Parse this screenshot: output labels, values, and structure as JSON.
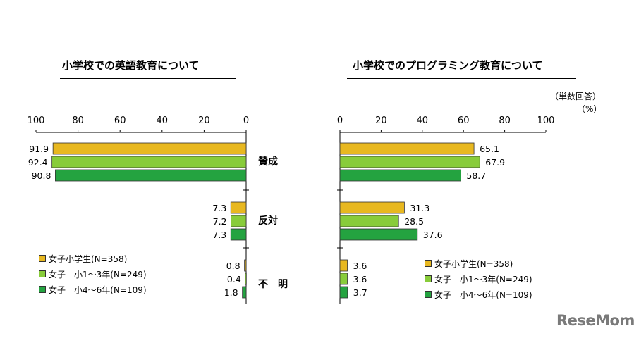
{
  "chart_data": [
    {
      "type": "bar",
      "orientation": "horizontal",
      "direction": "reversed",
      "title": "小学校での英語教育について",
      "categories": [
        "賛成",
        "反対",
        "不　明"
      ],
      "xlim": [
        0,
        100
      ],
      "ticks": [
        "100",
        "80",
        "60",
        "40",
        "20",
        "0"
      ],
      "series": [
        {
          "name": "女子小学生(N=358)",
          "values": [
            91.9,
            7.3,
            0.8
          ]
        },
        {
          "name": "女子　小1～3年(N=249)",
          "values": [
            92.4,
            7.2,
            0.4
          ]
        },
        {
          "name": "女子　小4～6年(N=109)",
          "values": [
            90.8,
            7.3,
            1.8
          ]
        }
      ],
      "legend": "bottom-left"
    },
    {
      "type": "bar",
      "orientation": "horizontal",
      "title": "小学校でのプログラミング教育について",
      "unit_label": "（単数回答）",
      "unit_sub": "（%）",
      "categories": [
        "賛成",
        "反対",
        "不　明"
      ],
      "xlim": [
        0,
        100
      ],
      "ticks": [
        "0",
        "20",
        "40",
        "60",
        "80",
        "100"
      ],
      "series": [
        {
          "name": "女子小学生(N=358)",
          "values": [
            65.1,
            31.3,
            3.6
          ]
        },
        {
          "name": "女子　小1～3年(N=249)",
          "values": [
            67.9,
            28.5,
            3.6
          ]
        },
        {
          "name": "女子　小4～6年(N=109)",
          "values": [
            58.7,
            37.6,
            3.7
          ]
        }
      ],
      "legend": "bottom-right"
    }
  ],
  "colors": {
    "series": [
      "#e8b820",
      "#88cc3a",
      "#24a340"
    ]
  },
  "logo": "ReseMom"
}
